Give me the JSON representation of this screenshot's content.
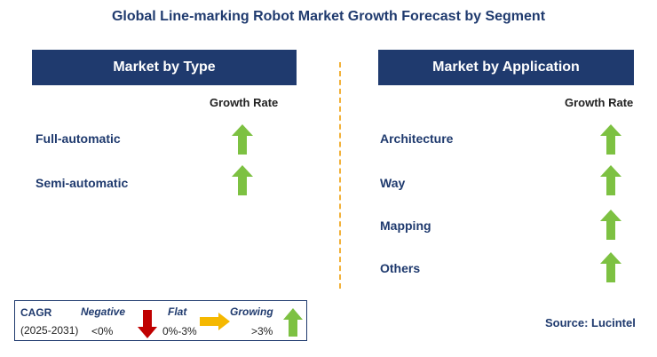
{
  "title": "Global Line-marking Robot Market Growth Forecast by Segment",
  "left_panel": {
    "header": "Market by Type",
    "growth_rate_label": "Growth Rate",
    "items": [
      {
        "label": "Full-automatic",
        "trend": "growing"
      },
      {
        "label": "Semi-automatic",
        "trend": "growing"
      }
    ]
  },
  "right_panel": {
    "header": "Market by Application",
    "growth_rate_label": "Growth Rate",
    "items": [
      {
        "label": "Architecture",
        "trend": "growing"
      },
      {
        "label": "Way",
        "trend": "growing"
      },
      {
        "label": "Mapping",
        "trend": "growing"
      },
      {
        "label": "Others",
        "trend": "growing"
      }
    ]
  },
  "legend": {
    "cagr_label": "CAGR",
    "period": "(2025-2031)",
    "negative_label": "Negative",
    "negative_range": "<0%",
    "flat_label": "Flat",
    "flat_range": "0%-3%",
    "growing_label": "Growing",
    "growing_range": ">3%"
  },
  "source": "Source: Lucintel",
  "colors": {
    "header_bg": "#1f3a6e",
    "growing_arrow": "#7dc142",
    "negative_arrow": "#c00000",
    "flat_arrow": "#f5b800",
    "divider": "#f2b13a"
  },
  "icons": {
    "growing": "up-arrow-icon",
    "negative": "down-arrow-icon",
    "flat": "right-arrow-icon"
  }
}
